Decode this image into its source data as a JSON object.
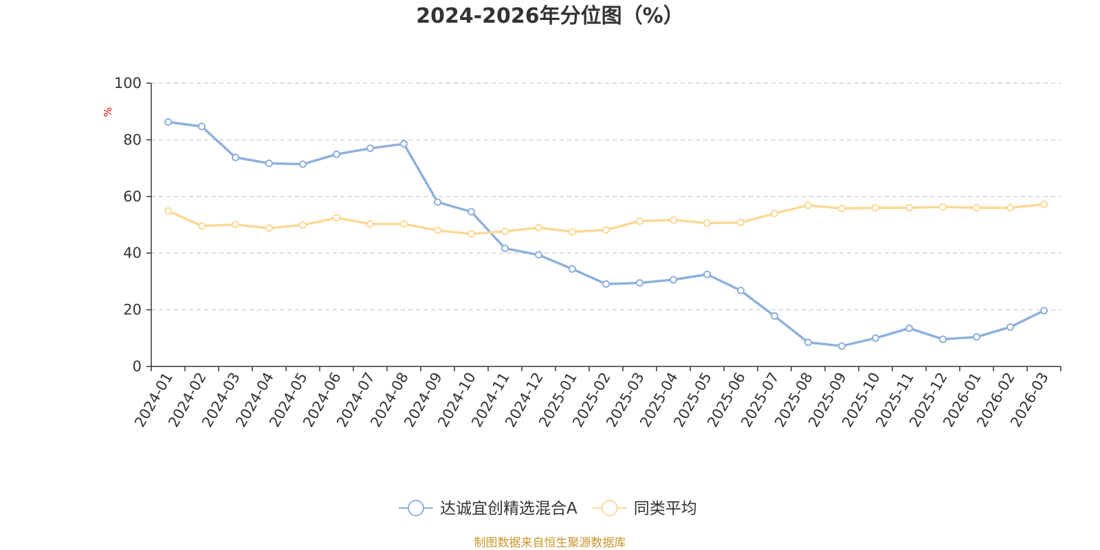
{
  "chart_data": {
    "type": "line",
    "title": "2024-2026年分位图（%）",
    "ylabel": "%",
    "ylim": [
      0,
      100
    ],
    "yticks": [
      0,
      20,
      40,
      60,
      80,
      100
    ],
    "grid": true,
    "legend_position": "bottom",
    "categories": [
      "2024-01",
      "2024-02",
      "2024-03",
      "2024-04",
      "2024-05",
      "2024-06",
      "2024-07",
      "2024-08",
      "2024-09",
      "2024-10",
      "2024-11",
      "2024-12",
      "2025-01",
      "2025-02",
      "2025-03",
      "2025-04",
      "2025-05",
      "2025-06",
      "2025-07",
      "2025-08",
      "2025-09",
      "2025-10",
      "2025-11",
      "2025-12",
      "2026-01",
      "2026-02",
      "2026-03"
    ],
    "series": [
      {
        "name": "达诚宜创精选混合A",
        "color": "#8eb0dc",
        "values": [
          86.3,
          84.7,
          73.8,
          71.7,
          71.4,
          74.9,
          77.0,
          78.6,
          58.0,
          54.6,
          41.7,
          39.4,
          34.4,
          29.1,
          29.5,
          30.6,
          32.5,
          26.8,
          17.8,
          8.5,
          7.2,
          10.0,
          13.5,
          9.6,
          10.4,
          13.9,
          19.7
        ]
      },
      {
        "name": "同类平均",
        "color": "#fbd995",
        "values": [
          54.9,
          49.6,
          50.1,
          48.8,
          49.9,
          52.5,
          50.3,
          50.3,
          48.0,
          46.8,
          47.7,
          49.0,
          47.5,
          48.2,
          51.3,
          51.7,
          50.6,
          50.8,
          54.0,
          56.9,
          55.8,
          56.0,
          56.0,
          56.3,
          56.0,
          56.0,
          57.2
        ]
      }
    ]
  },
  "source_text": "制图数据来自恒生聚源数据库"
}
